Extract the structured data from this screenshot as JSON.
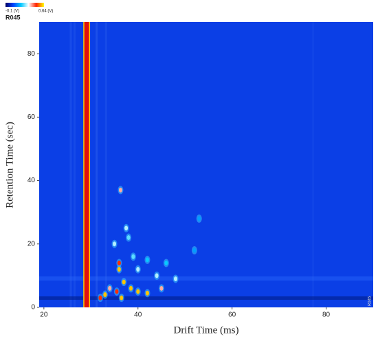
{
  "chart_data": {
    "type": "heatmap",
    "label": "R045",
    "side_label": "R045",
    "colorbar": {
      "min_label": "-0.1 (V)",
      "max_label": "0.64 (V)",
      "min": -0.1,
      "max": 0.64,
      "colors": [
        "#000060",
        "#0040ff",
        "#00c8ff",
        "#ffffff",
        "#ff2000",
        "#ffff00"
      ]
    },
    "x_label": "Drift Time (ms)",
    "y_label": "Retention Time (sec)",
    "xlim": [
      19,
      90
    ],
    "ylim": [
      0,
      90
    ],
    "xticks": [
      20,
      40,
      60,
      80
    ],
    "yticks": [
      0,
      20,
      40,
      60,
      80
    ],
    "background": "#0b3fe6",
    "rip": {
      "x": [
        28.6,
        29.6
      ],
      "color": "#e01010"
    },
    "peaks": {
      "x": [
        36.3,
        37.5,
        35,
        36,
        36,
        37,
        38.5,
        40,
        42,
        33,
        34,
        32,
        45,
        44,
        48,
        40,
        39,
        42,
        46,
        38,
        52,
        53,
        36.5,
        35.5
      ],
      "y": [
        37,
        25,
        20,
        14,
        12,
        8,
        6,
        5,
        4.5,
        4,
        6,
        3,
        6,
        10,
        9,
        12,
        16,
        15,
        14,
        22,
        18,
        28,
        3,
        5
      ],
      "values": [
        0.4,
        0.3,
        0.3,
        0.5,
        0.6,
        0.6,
        0.6,
        0.6,
        0.6,
        0.6,
        0.4,
        0.5,
        0.4,
        0.3,
        0.3,
        0.3,
        0.25,
        0.2,
        0.2,
        0.25,
        0.15,
        0.15,
        0.6,
        0.5
      ]
    }
  }
}
